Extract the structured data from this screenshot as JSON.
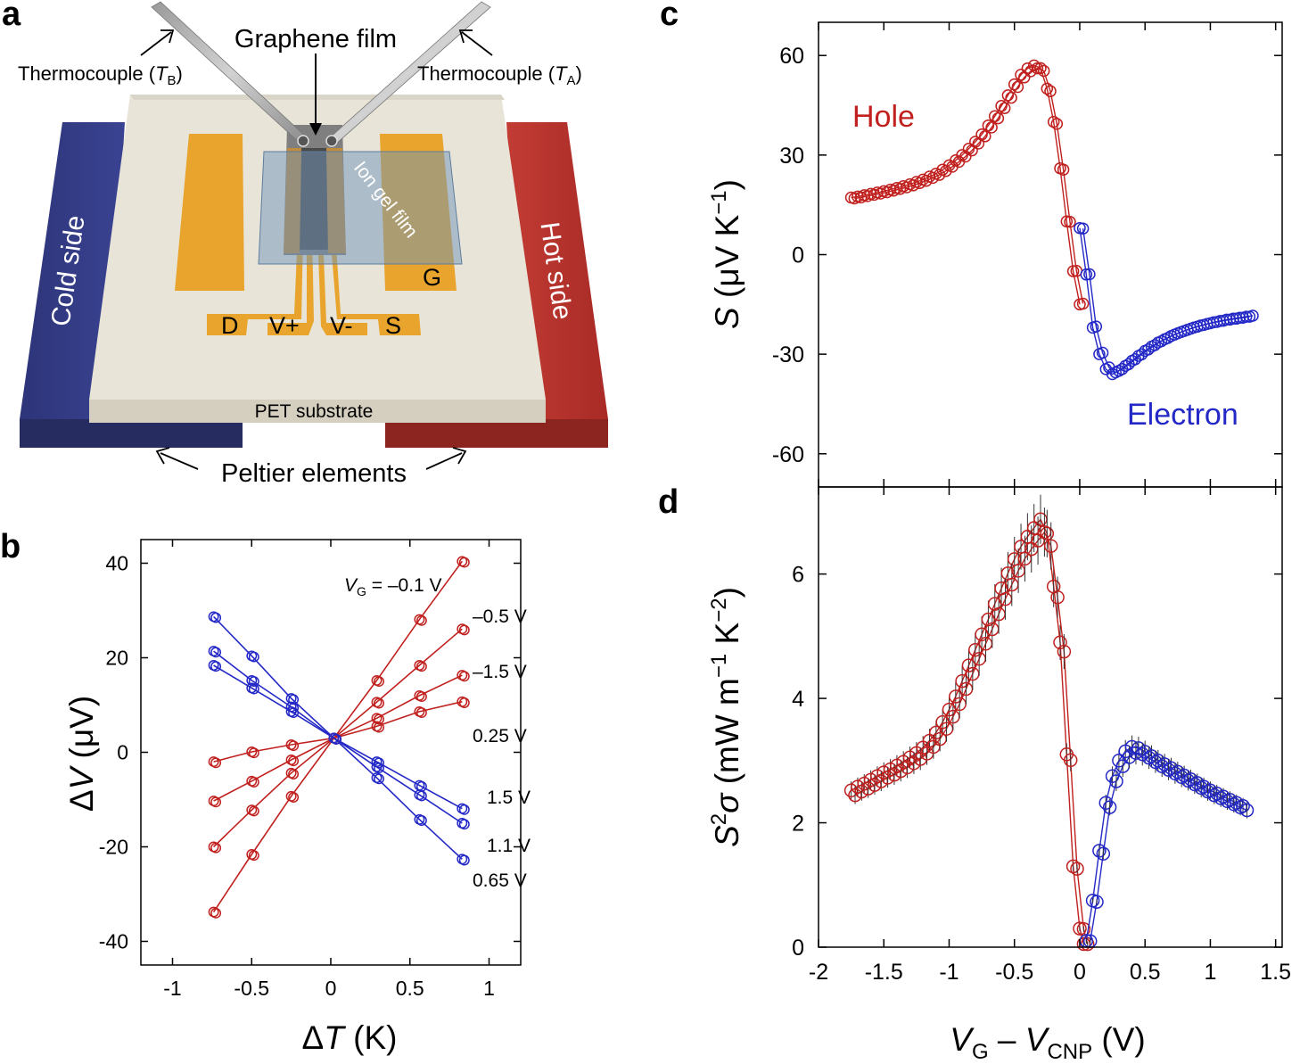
{
  "panel_labels": {
    "a": "a",
    "b": "b",
    "c": "c",
    "d": "d"
  },
  "colors": {
    "hole": "#c0201e",
    "electron": "#2328c6",
    "gold": "#eaa42c",
    "cold": "#343c86",
    "hot": "#b8342e",
    "substrate": "#e6e2d6"
  },
  "schematic": {
    "graphene_film": "Graphene film",
    "thermocouple_b": "Thermocouple (",
    "thermocouple_b_var": "T",
    "thermocouple_b_sub": "B",
    "thermocouple_close": ")",
    "thermocouple_a": "Thermocouple (",
    "thermocouple_a_var": "T",
    "thermocouple_a_sub": "A",
    "ion_gel": "Ion gel film",
    "cold_side": "Cold side",
    "hot_side": "Hot side",
    "substrate": "PET substrate",
    "peltier": "Peltier elements",
    "electrodes": {
      "d": "D",
      "vplus": "V+",
      "vminus": "V-",
      "s": "S",
      "g": "G"
    }
  },
  "chart_data": [
    {
      "id": "b",
      "type": "scatter",
      "xlabel_prefix": "Δ",
      "xlabel_var": "T",
      "xlabel_unit": " (K)",
      "ylabel_prefix": "Δ",
      "ylabel_var": "V",
      "ylabel_unit": " (μV)",
      "xlim": [
        -1.2,
        1.2
      ],
      "ylim": [
        -45,
        45
      ],
      "xticks": [
        -1,
        -0.5,
        0,
        0.5,
        1
      ],
      "xtick_labels": [
        "-1",
        "-0.5",
        "0",
        "0.5",
        "1"
      ],
      "yticks": [
        -40,
        -20,
        0,
        20,
        40
      ],
      "ytick_labels": [
        "-40",
        "-20",
        "0",
        "20",
        "40"
      ],
      "x": [
        -0.74,
        -0.5,
        -0.25,
        0.02,
        0.29,
        0.56,
        0.83
      ],
      "series": [
        {
          "name": "-0.1 V",
          "color": "hole",
          "values": [
            -33.8,
            -21.6,
            -9.3,
            3.0,
            15.2,
            28.1,
            40.4
          ]
        },
        {
          "name": "-0.5 V",
          "color": "hole",
          "values": [
            -20.0,
            -12.2,
            -4.4,
            3.0,
            10.6,
            18.4,
            26.1
          ]
        },
        {
          "name": "-1.5 V",
          "color": "hole",
          "values": [
            -10.3,
            -6.1,
            -1.6,
            3.0,
            7.2,
            12.0,
            16.3
          ]
        },
        {
          "name": "0.25 V",
          "color": "hole",
          "values": [
            -2.0,
            0.1,
            1.6,
            3.0,
            5.5,
            8.6,
            10.7
          ]
        },
        {
          "name": "1.5 V",
          "color": "electron",
          "values": [
            18.4,
            13.6,
            8.6,
            3.0,
            -2.0,
            -7.0,
            -11.9
          ]
        },
        {
          "name": "1.1 V",
          "color": "electron",
          "values": [
            21.4,
            15.2,
            9.6,
            3.0,
            -3.1,
            -9.0,
            -15.0
          ]
        },
        {
          "name": "0.65 V",
          "color": "electron",
          "values": [
            28.7,
            20.4,
            11.4,
            3.0,
            -5.4,
            -14.2,
            -22.6
          ]
        }
      ],
      "annotations": {
        "vg_var": "V",
        "vg_sub": "G",
        "vg_value": " = –0.1 V",
        "labels": [
          "–0.5 V",
          "–1.5 V",
          "0.25 V",
          "1.5 V",
          "1.1 V",
          "0.65 V"
        ]
      }
    },
    {
      "id": "c",
      "type": "line",
      "ylabel_var": "S",
      "ylabel_unit": " (μV K",
      "ylabel_sup": "−1",
      "ylabel_close": ")",
      "xlim": [
        -2.0,
        1.55
      ],
      "ylim": [
        -70,
        70
      ],
      "yticks": [
        -60,
        -30,
        0,
        30,
        60
      ],
      "ytick_labels": [
        "-60",
        "-30",
        "0",
        "30",
        "60"
      ],
      "hole": {
        "x": [
          -1.75,
          -1.7,
          -1.65,
          -1.6,
          -1.55,
          -1.5,
          -1.45,
          -1.4,
          -1.35,
          -1.3,
          -1.25,
          -1.2,
          -1.15,
          -1.1,
          -1.05,
          -1.0,
          -0.95,
          -0.9,
          -0.85,
          -0.8,
          -0.75,
          -0.7,
          -0.65,
          -0.6,
          -0.55,
          -0.5,
          -0.45,
          -0.4,
          -0.35,
          -0.3,
          -0.25,
          -0.2,
          -0.15,
          -0.1,
          -0.05,
          0.0
        ],
        "values": [
          17.2,
          17.5,
          17.9,
          18.3,
          18.7,
          19.1,
          19.6,
          20.1,
          20.6,
          21.2,
          21.9,
          22.6,
          23.5,
          24.4,
          25.6,
          26.9,
          28.4,
          30.0,
          31.9,
          34.0,
          36.2,
          38.9,
          41.7,
          44.8,
          48.0,
          51.3,
          54.2,
          56.1,
          57.0,
          56.2,
          50.0,
          40.0,
          26.0,
          10.0,
          -5.0,
          -15.0
        ]
      },
      "electron": {
        "x": [
          0.0,
          0.05,
          0.1,
          0.15,
          0.2,
          0.25,
          0.3,
          0.35,
          0.4,
          0.45,
          0.5,
          0.55,
          0.6,
          0.65,
          0.7,
          0.75,
          0.8,
          0.85,
          0.9,
          0.95,
          1.0,
          1.05,
          1.1,
          1.15,
          1.2,
          1.25,
          1.3
        ],
        "values": [
          8.0,
          -6.0,
          -22.0,
          -30.0,
          -34.5,
          -36.0,
          -35.0,
          -33.5,
          -32.0,
          -30.5,
          -29.0,
          -27.7,
          -26.5,
          -25.5,
          -24.5,
          -23.7,
          -23.0,
          -22.3,
          -21.7,
          -21.2,
          -20.7,
          -20.3,
          -19.9,
          -19.6,
          -19.3,
          -19.0,
          -18.7
        ]
      },
      "labels": {
        "hole": "Hole",
        "electron": "Electron"
      }
    },
    {
      "id": "d",
      "type": "line",
      "ylabel_var": "S",
      "ylabel_sup": "2",
      "ylabel_var2": "σ",
      "ylabel_unit": " (mW m",
      "ylabel_sup2": "−1",
      "ylabel_unit2": " K",
      "ylabel_sup3": "−2",
      "ylabel_close": ")",
      "xlabel_var": "V",
      "xlabel_sub": "G",
      "xlabel_mid": " – ",
      "xlabel_var2": "V",
      "xlabel_sub2": "CNP",
      "xlabel_unit": " (V)",
      "xlim": [
        -2.0,
        1.55
      ],
      "ylim": [
        0,
        7.4
      ],
      "xticks": [
        -2,
        -1.5,
        -1,
        -0.5,
        0,
        0.5,
        1,
        1.5
      ],
      "xtick_labels": [
        "-2",
        "-1.5",
        "-1",
        "-0.5",
        "0",
        "0.5",
        "1",
        "1.5"
      ],
      "yticks": [
        0,
        2,
        4,
        6
      ],
      "ytick_labels": [
        "0",
        "2",
        "4",
        "6"
      ],
      "hole": {
        "x": [
          -1.75,
          -1.7,
          -1.65,
          -1.6,
          -1.55,
          -1.5,
          -1.45,
          -1.4,
          -1.35,
          -1.3,
          -1.25,
          -1.2,
          -1.15,
          -1.1,
          -1.05,
          -1.0,
          -0.95,
          -0.9,
          -0.85,
          -0.8,
          -0.75,
          -0.7,
          -0.65,
          -0.6,
          -0.55,
          -0.5,
          -0.45,
          -0.4,
          -0.35,
          -0.3,
          -0.25,
          -0.2,
          -0.15,
          -0.1,
          -0.05,
          0.0,
          0.03
        ],
        "values": [
          2.52,
          2.58,
          2.63,
          2.69,
          2.75,
          2.81,
          2.86,
          2.92,
          2.98,
          3.05,
          3.12,
          3.21,
          3.32,
          3.45,
          3.62,
          3.82,
          4.03,
          4.28,
          4.53,
          4.78,
          5.03,
          5.27,
          5.52,
          5.77,
          6.01,
          6.24,
          6.44,
          6.6,
          6.74,
          6.88,
          6.65,
          5.8,
          4.9,
          3.1,
          1.3,
          0.3,
          0.05
        ]
      },
      "electron": {
        "x": [
          0.05,
          0.1,
          0.15,
          0.2,
          0.25,
          0.3,
          0.35,
          0.4,
          0.45,
          0.5,
          0.55,
          0.6,
          0.65,
          0.7,
          0.75,
          0.8,
          0.85,
          0.9,
          0.95,
          1.0,
          1.05,
          1.1,
          1.15,
          1.2,
          1.25
        ],
        "values": [
          0.1,
          0.75,
          1.55,
          2.32,
          2.75,
          3.0,
          3.15,
          3.22,
          3.2,
          3.14,
          3.07,
          3.0,
          2.94,
          2.88,
          2.82,
          2.76,
          2.7,
          2.64,
          2.58,
          2.52,
          2.47,
          2.42,
          2.37,
          2.32,
          2.27
        ]
      }
    }
  ]
}
